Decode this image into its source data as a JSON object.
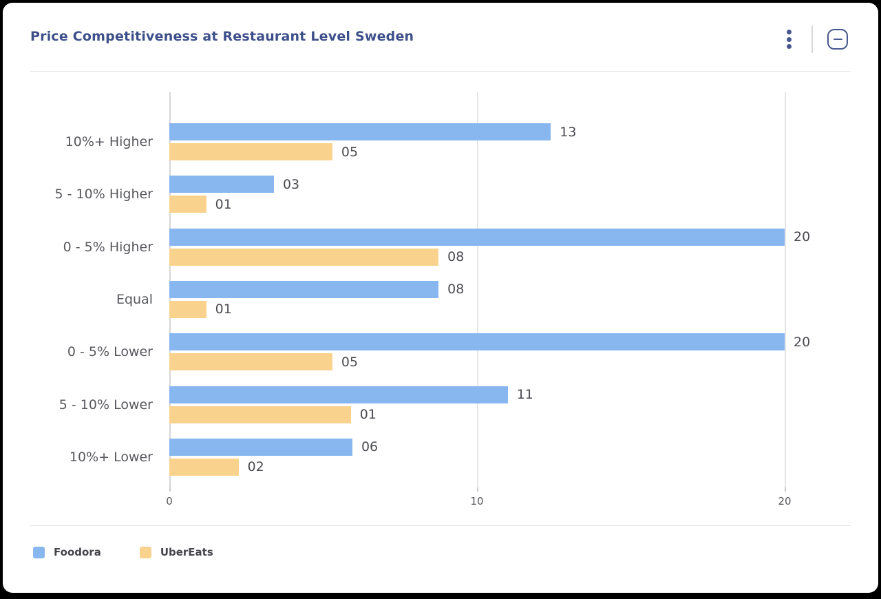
{
  "header": {
    "title": "Price Competitiveness at Restaurant Level Sweden"
  },
  "colors": {
    "title": "#3D4F8A",
    "icon": "#47588F",
    "foodora": "#88B6EF",
    "ubereats": "#F9D38D",
    "category_label": "#57585D",
    "value_label": "#4B4C51",
    "tick_label": "#55565B"
  },
  "chart_data": {
    "type": "bar",
    "orientation": "horizontal",
    "title": "Price Competitiveness at Restaurant Level Sweden",
    "categories": [
      "10%+ Higher",
      "5 - 10% Higher",
      "0 - 5% Higher",
      "Equal",
      "0 - 5% Lower",
      "5 - 10% Lower",
      "10%+ Lower"
    ],
    "series": [
      {
        "name": "Foodora",
        "color": "#88B6EF",
        "values": [
          13,
          3,
          20,
          8,
          20,
          11,
          6
        ],
        "value_labels": [
          "13",
          "03",
          "20",
          "08",
          "20",
          "11",
          "06"
        ],
        "bar_units": [
          12.4,
          3.4,
          20,
          8.75,
          20,
          11,
          5.95
        ]
      },
      {
        "name": "UberEats",
        "color": "#F9D38D",
        "values": [
          5,
          1,
          8,
          1,
          5,
          1,
          2
        ],
        "value_labels": [
          "05",
          "01",
          "08",
          "01",
          "05",
          "01",
          "02"
        ],
        "bar_units": [
          5.3,
          1.2,
          8.75,
          1.2,
          5.3,
          5.9,
          2.25
        ]
      }
    ],
    "x_ticks": [
      0,
      10,
      20
    ],
    "x_tick_labels": [
      "0",
      "10",
      "20"
    ],
    "xlim": [
      0,
      20
    ],
    "grid": true,
    "legend": [
      "Foodora",
      "UberEats"
    ],
    "legend_position": "bottom-left"
  }
}
